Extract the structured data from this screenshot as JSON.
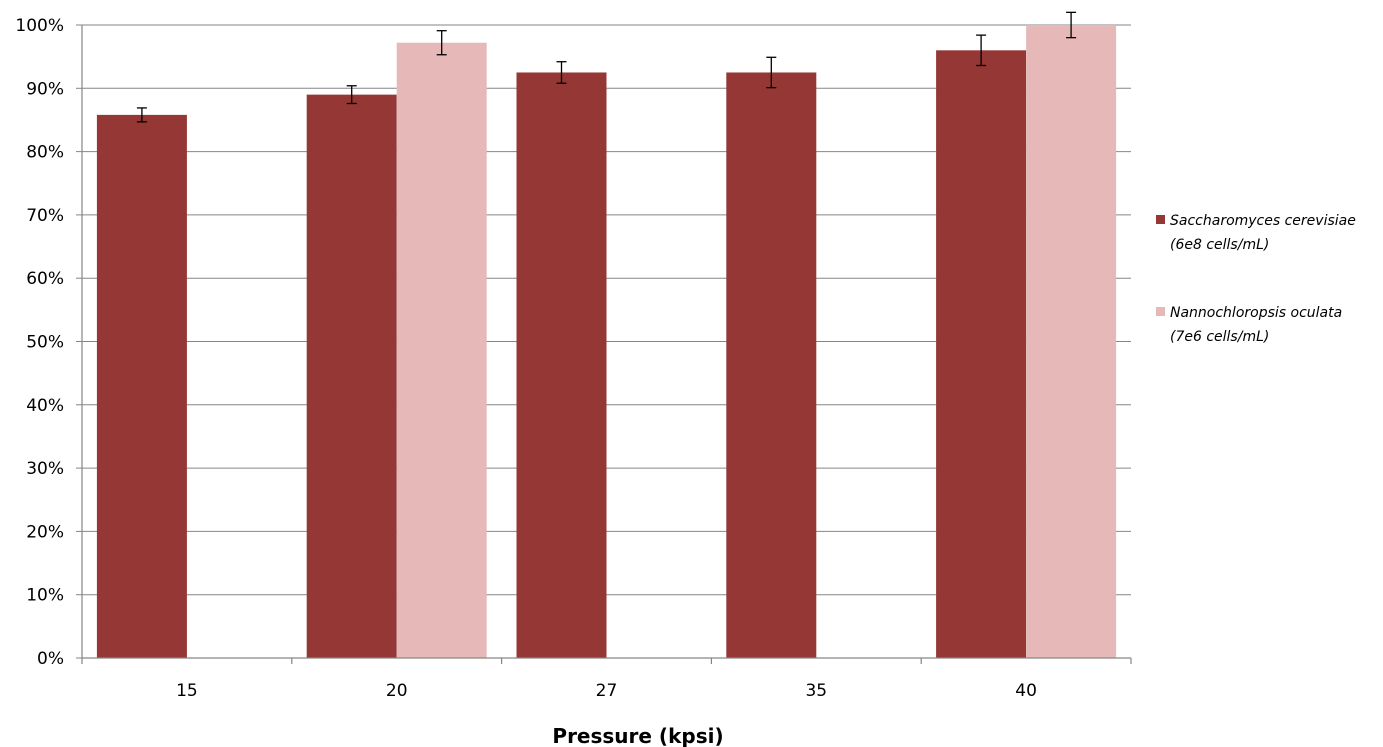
{
  "chart_data": {
    "type": "bar",
    "title": "",
    "xlabel": "Pressure (kpsi)",
    "ylabel": "",
    "categories": [
      "15",
      "20",
      "27",
      "35",
      "40"
    ],
    "ylim": [
      0,
      1
    ],
    "ytick_values": [
      0,
      0.1,
      0.2,
      0.3,
      0.4,
      0.5,
      0.6,
      0.7,
      0.8,
      0.9,
      1.0
    ],
    "ytick_labels": [
      "0%",
      "10%",
      "20%",
      "30%",
      "40%",
      "50%",
      "60%",
      "70%",
      "80%",
      "90%",
      "100%"
    ],
    "grid": true,
    "legend_position": "right",
    "series": [
      {
        "name": "Saccharomyces cerevisiae (6e8 cells/mL)",
        "legend_lines": [
          "Saccharomyces cerevisiae",
          "(6e8 cells/mL)"
        ],
        "color": "#953735",
        "values": [
          0.858,
          0.89,
          0.925,
          0.925,
          0.96
        ],
        "errors": [
          0.011,
          0.014,
          0.017,
          0.024,
          0.024
        ]
      },
      {
        "name": "Nannochloropsis oculata (7e6 cells/mL)",
        "legend_lines": [
          "Nannochloropsis oculata",
          "(7e6 cells/mL)"
        ],
        "color": "#E6B9B8",
        "values": [
          null,
          0.972,
          null,
          null,
          1.0
        ],
        "errors": [
          null,
          0.019,
          null,
          null,
          0.02
        ]
      }
    ]
  }
}
